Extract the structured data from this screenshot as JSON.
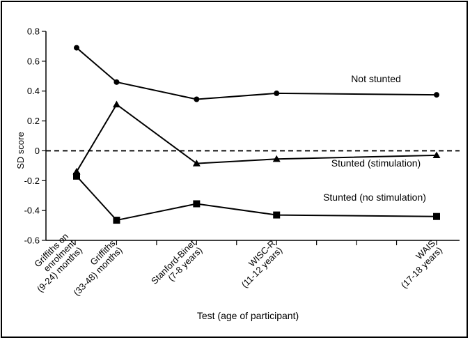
{
  "chart_data": {
    "type": "line",
    "xlabel": "Test (age of participant)",
    "ylabel": "SD score",
    "ylim": [
      -0.6,
      0.8
    ],
    "yticks": [
      -0.6,
      -0.4,
      -0.2,
      0,
      0.2,
      0.4,
      0.6,
      0.8
    ],
    "ytick_labels": [
      "-0.6",
      "-0.4",
      "-0.2",
      "0",
      "0.2",
      "0.4",
      "0.6",
      "0.8"
    ],
    "categories": [
      [
        "Griffiths on",
        "enrolment",
        "(9-24) months)"
      ],
      [
        "Griffiths",
        "(33-48) months)"
      ],
      [
        "Stanford-Binet",
        "(7-8 years)"
      ],
      [
        "WISC-R",
        "(11-12 years)"
      ],
      [
        "WAIS",
        "(17-18 years)"
      ]
    ],
    "x_positions": [
      0,
      1,
      3,
      5,
      9
    ],
    "xlim": [
      0,
      9
    ],
    "reference_line": {
      "y": 0,
      "style": "dashed"
    },
    "grid": false,
    "legend": "inline labels",
    "series": [
      {
        "name": "Not stunted",
        "marker": "circle",
        "values": [
          0.69,
          0.46,
          0.345,
          0.385,
          0.375
        ]
      },
      {
        "name": "Stunted (stimulation)",
        "marker": "triangle",
        "values": [
          -0.14,
          0.31,
          -0.085,
          -0.055,
          -0.03
        ]
      },
      {
        "name": "Stunted (no stimulation)",
        "marker": "square",
        "values": [
          -0.17,
          -0.465,
          -0.355,
          -0.43,
          -0.44
        ]
      }
    ]
  }
}
